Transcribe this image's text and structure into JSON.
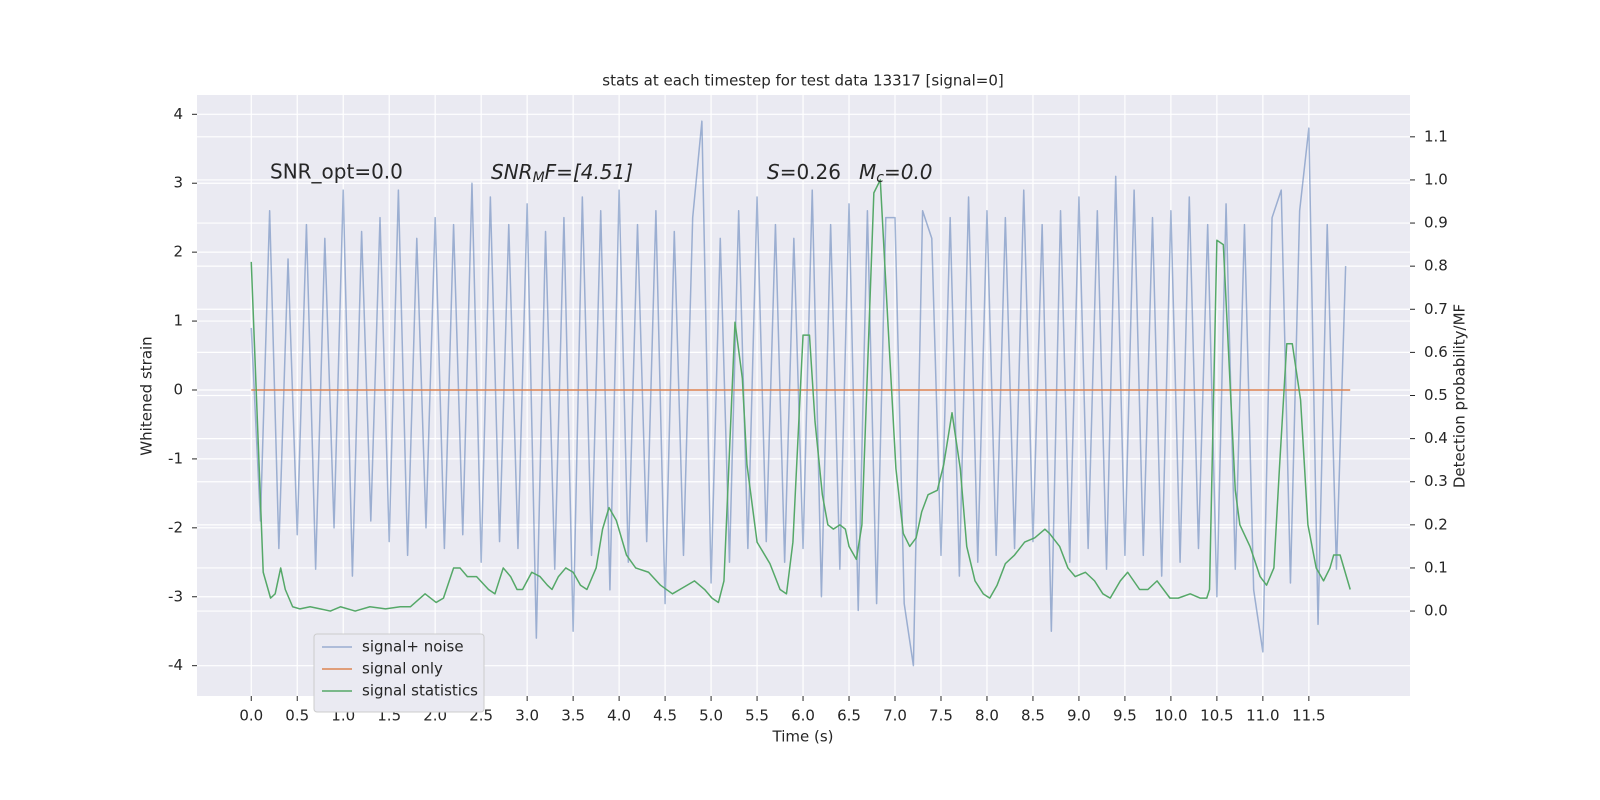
{
  "chart_data": {
    "type": "line",
    "title": "stats at each timestep for test data 13317 [signal=0]",
    "xlabel": "Time (s)",
    "ylabel": "Whitened strain",
    "y2label": "Detection probability/MF",
    "annotations": [
      {
        "text": "SNR_opt=0.0"
      },
      {
        "main": "SNR",
        "sub": "M",
        "rest": "F=[4.51]"
      },
      {
        "main": "S",
        "rest": "=0.26"
      },
      {
        "main": "M",
        "sub": "c",
        "rest": "=0.0"
      }
    ],
    "xlim": [
      -0.59,
      12.6
    ],
    "ylim": [
      -4.44,
      4.28
    ],
    "y2lim": [
      -0.197,
      1.197
    ],
    "xticks": [
      {
        "value": 0,
        "label": "0.0"
      },
      {
        "value": 0.5,
        "label": "0.5"
      },
      {
        "value": 1,
        "label": "1.0"
      },
      {
        "value": 1.5,
        "label": "1.5"
      },
      {
        "value": 2,
        "label": "2.0"
      },
      {
        "value": 2.5,
        "label": "2.5"
      },
      {
        "value": 3,
        "label": "3.0"
      },
      {
        "value": 3.5,
        "label": "3.5"
      },
      {
        "value": 4,
        "label": "4.0"
      },
      {
        "value": 4.5,
        "label": "4.5"
      },
      {
        "value": 5,
        "label": "5.0"
      },
      {
        "value": 5.5,
        "label": "5.5"
      },
      {
        "value": 6,
        "label": "6.0"
      },
      {
        "value": 6.5,
        "label": "6.5"
      },
      {
        "value": 7,
        "label": "7.0"
      },
      {
        "value": 7.5,
        "label": "7.5"
      },
      {
        "value": 8,
        "label": "8.0"
      },
      {
        "value": 8.5,
        "label": "8.5"
      },
      {
        "value": 9,
        "label": "9.0"
      },
      {
        "value": 9.5,
        "label": "9.5"
      },
      {
        "value": 10,
        "label": "10.0"
      },
      {
        "value": 10.5,
        "label": "10.5"
      },
      {
        "value": 11,
        "label": "11.0"
      },
      {
        "value": 11.5,
        "label": "11.5"
      }
    ],
    "yticks": [
      -4,
      -3,
      -2,
      -1,
      0,
      1,
      2,
      3,
      4
    ],
    "y2ticks": [
      {
        "value": 0,
        "label": "0.0"
      },
      {
        "value": 0.1,
        "label": "0.1"
      },
      {
        "value": 0.2,
        "label": "0.2"
      },
      {
        "value": 0.3,
        "label": "0.3"
      },
      {
        "value": 0.4,
        "label": "0.4"
      },
      {
        "value": 0.5,
        "label": "0.5"
      },
      {
        "value": 0.6,
        "label": "0.6"
      },
      {
        "value": 0.7,
        "label": "0.7"
      },
      {
        "value": 0.8,
        "label": "0.8"
      },
      {
        "value": 0.9,
        "label": "0.9"
      },
      {
        "value": 1,
        "label": "1.0"
      },
      {
        "value": 1.1,
        "label": "1.1"
      }
    ],
    "grid": true,
    "legend": "lower left",
    "series": [
      {
        "name": "signal+ noise",
        "color": "#4c72b0",
        "alpha": 0.5,
        "x": [
          0,
          0.1,
          0.2,
          0.3,
          0.4,
          0.5,
          0.6,
          0.7,
          0.8,
          0.9,
          1,
          1.1,
          1.2,
          1.3,
          1.4,
          1.5,
          1.6,
          1.7,
          1.8,
          1.9,
          2,
          2.1,
          2.2,
          2.3,
          2.4,
          2.5,
          2.6,
          2.7,
          2.8,
          2.9,
          3,
          3.1,
          3.2,
          3.3,
          3.4,
          3.5,
          3.6,
          3.7,
          3.8,
          3.9,
          4,
          4.1,
          4.2,
          4.3,
          4.4,
          4.5,
          4.6,
          4.7,
          4.8,
          4.9,
          5,
          5.1,
          5.2,
          5.3,
          5.4,
          5.5,
          5.6,
          5.7,
          5.8,
          5.9,
          6,
          6.1,
          6.2,
          6.3,
          6.4,
          6.5,
          6.6,
          6.7,
          6.8,
          6.9,
          7,
          7.1,
          7.2,
          7.3,
          7.4,
          7.5,
          7.6,
          7.7,
          7.8,
          7.9,
          8,
          8.1,
          8.2,
          8.3,
          8.4,
          8.5,
          8.6,
          8.7,
          8.8,
          8.9,
          9,
          9.1,
          9.2,
          9.3,
          9.4,
          9.5,
          9.6,
          9.7,
          9.8,
          9.9,
          10,
          10.1,
          10.2,
          10.3,
          10.4,
          10.5,
          10.6,
          10.7,
          10.8,
          10.9,
          11,
          11.1,
          11.2,
          11.3,
          11.4,
          11.5,
          11.6,
          11.7,
          11.8,
          11.9
        ],
        "values": [
          0.9,
          -1.9,
          2.6,
          -2.3,
          1.9,
          -2.1,
          2.4,
          -2.6,
          2.2,
          -2.0,
          2.9,
          -2.7,
          2.3,
          -1.9,
          2.5,
          -2.2,
          2.9,
          -2.4,
          2.2,
          -2.0,
          2.5,
          -2.3,
          2.4,
          -2.1,
          3.0,
          -2.5,
          2.8,
          -2.2,
          2.4,
          -2.3,
          2.7,
          -3.6,
          2.3,
          -2.6,
          2.5,
          -3.5,
          2.8,
          -2.4,
          2.6,
          -2.9,
          2.9,
          -2.5,
          2.4,
          -2.2,
          2.6,
          -3.1,
          2.3,
          -2.4,
          2.5,
          3.9,
          -2.8,
          2.2,
          -2.5,
          2.6,
          -2.3,
          2.8,
          -2.2,
          2.4,
          -2.5,
          2.2,
          -2.3,
          2.9,
          -3.0,
          2.4,
          -2.6,
          2.7,
          -3.2,
          2.6,
          -3.1,
          2.5,
          2.5,
          -3.1,
          -4.0,
          2.6,
          2.2,
          -2.4,
          2.5,
          -2.7,
          2.8,
          -2.5,
          2.6,
          -2.4,
          2.5,
          -2.3,
          2.9,
          -2.2,
          2.4,
          -3.5,
          2.6,
          -2.5,
          2.8,
          -2.3,
          2.6,
          -2.6,
          3.1,
          -2.4,
          2.9,
          -2.4,
          2.5,
          -2.7,
          2.6,
          -2.5,
          2.8,
          -2.3,
          2.4,
          -3.0,
          2.7,
          -2.6,
          2.4,
          -2.9,
          -3.8,
          2.5,
          2.9,
          -2.8,
          2.6,
          3.8,
          -3.4,
          2.4,
          -2.6,
          1.8
        ]
      },
      {
        "name": "signal only",
        "color": "#dd8452",
        "x": [
          0,
          11.95
        ],
        "values": [
          0,
          0
        ]
      },
      {
        "name": "signal statistics",
        "color": "#55a868",
        "axis": "y2",
        "x": [
          0,
          0.13,
          0.21,
          0.26,
          0.32,
          0.37,
          0.45,
          0.53,
          0.64,
          0.75,
          0.86,
          0.97,
          1.13,
          1.29,
          1.46,
          1.62,
          1.73,
          1.89,
          2.01,
          2.09,
          2.2,
          2.27,
          2.35,
          2.45,
          2.58,
          2.65,
          2.74,
          2.82,
          2.89,
          2.95,
          3.05,
          3.14,
          3.22,
          3.27,
          3.34,
          3.42,
          3.5,
          3.58,
          3.65,
          3.75,
          3.82,
          3.89,
          3.97,
          4.08,
          4.18,
          4.32,
          4.45,
          4.58,
          4.66,
          4.82,
          4.93,
          5.01,
          5.08,
          5.14,
          5.26,
          5.34,
          5.39,
          5.5,
          5.64,
          5.75,
          5.82,
          5.89,
          6.0,
          6.07,
          6.13,
          6.21,
          6.27,
          6.33,
          6.4,
          6.46,
          6.5,
          6.58,
          6.64,
          6.77,
          6.84,
          6.92,
          7.01,
          7.09,
          7.16,
          7.23,
          7.29,
          7.36,
          7.46,
          7.53,
          7.62,
          7.71,
          7.78,
          7.87,
          7.96,
          8.03,
          8.11,
          8.2,
          8.3,
          8.41,
          8.52,
          8.63,
          8.68,
          8.79,
          8.88,
          8.96,
          9.07,
          9.17,
          9.26,
          9.34,
          9.45,
          9.53,
          9.66,
          9.75,
          9.85,
          9.99,
          10.08,
          10.21,
          10.32,
          10.39,
          10.42,
          10.5,
          10.57,
          10.7,
          10.75,
          10.86,
          10.97,
          11.04,
          11.12,
          11.18,
          11.26,
          11.32,
          11.41,
          11.49,
          11.58,
          11.66,
          11.73,
          11.77,
          11.84,
          11.95
        ],
        "values": [
          0.81,
          0.09,
          0.03,
          0.04,
          0.1,
          0.05,
          0.01,
          0.005,
          0.01,
          0.005,
          0.0,
          0.01,
          0.0,
          0.01,
          0.005,
          0.01,
          0.01,
          0.04,
          0.02,
          0.03,
          0.1,
          0.1,
          0.08,
          0.08,
          0.05,
          0.04,
          0.1,
          0.08,
          0.05,
          0.05,
          0.09,
          0.08,
          0.06,
          0.05,
          0.08,
          0.1,
          0.09,
          0.06,
          0.05,
          0.1,
          0.19,
          0.24,
          0.21,
          0.13,
          0.1,
          0.09,
          0.06,
          0.04,
          0.05,
          0.07,
          0.05,
          0.03,
          0.02,
          0.07,
          0.67,
          0.54,
          0.34,
          0.16,
          0.11,
          0.05,
          0.04,
          0.16,
          0.64,
          0.64,
          0.44,
          0.27,
          0.2,
          0.19,
          0.2,
          0.19,
          0.15,
          0.12,
          0.2,
          0.97,
          1.0,
          0.68,
          0.33,
          0.18,
          0.15,
          0.17,
          0.23,
          0.27,
          0.28,
          0.34,
          0.46,
          0.33,
          0.15,
          0.07,
          0.04,
          0.03,
          0.06,
          0.11,
          0.13,
          0.16,
          0.17,
          0.19,
          0.18,
          0.15,
          0.1,
          0.08,
          0.09,
          0.07,
          0.04,
          0.03,
          0.07,
          0.09,
          0.05,
          0.05,
          0.07,
          0.03,
          0.03,
          0.04,
          0.03,
          0.03,
          0.05,
          0.86,
          0.85,
          0.28,
          0.2,
          0.15,
          0.08,
          0.06,
          0.1,
          0.33,
          0.62,
          0.62,
          0.49,
          0.2,
          0.1,
          0.07,
          0.1,
          0.13,
          0.13,
          0.05
        ]
      }
    ]
  }
}
